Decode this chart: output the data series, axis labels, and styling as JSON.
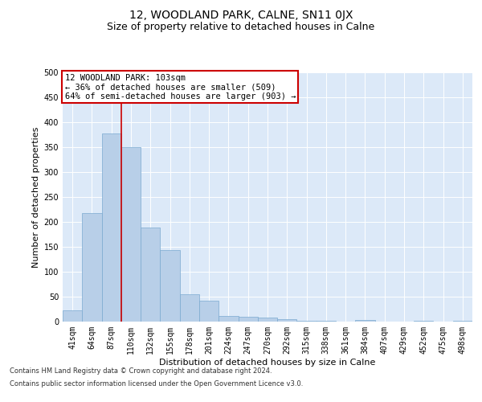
{
  "title": "12, WOODLAND PARK, CALNE, SN11 0JX",
  "subtitle": "Size of property relative to detached houses in Calne",
  "xlabel": "Distribution of detached houses by size in Calne",
  "ylabel": "Number of detached properties",
  "categories": [
    "41sqm",
    "64sqm",
    "87sqm",
    "110sqm",
    "132sqm",
    "155sqm",
    "178sqm",
    "201sqm",
    "224sqm",
    "247sqm",
    "270sqm",
    "292sqm",
    "315sqm",
    "338sqm",
    "361sqm",
    "384sqm",
    "407sqm",
    "429sqm",
    "452sqm",
    "475sqm",
    "498sqm"
  ],
  "values": [
    22,
    218,
    378,
    350,
    188,
    143,
    55,
    42,
    12,
    9,
    8,
    5,
    2,
    1,
    0,
    4,
    0,
    0,
    2,
    0,
    2
  ],
  "bar_color": "#b8cfe8",
  "bar_edge_color": "#7aaad0",
  "marker_color": "#cc0000",
  "annotation_text": "12 WOODLAND PARK: 103sqm\n← 36% of detached houses are smaller (509)\n64% of semi-detached houses are larger (903) →",
  "annotation_box_color": "#ffffff",
  "annotation_box_edge": "#cc0000",
  "ylim": [
    0,
    500
  ],
  "yticks": [
    0,
    50,
    100,
    150,
    200,
    250,
    300,
    350,
    400,
    450,
    500
  ],
  "plot_background": "#dce9f8",
  "footer_line1": "Contains HM Land Registry data © Crown copyright and database right 2024.",
  "footer_line2": "Contains public sector information licensed under the Open Government Licence v3.0.",
  "title_fontsize": 10,
  "subtitle_fontsize": 9,
  "tick_fontsize": 7,
  "ylabel_fontsize": 8,
  "xlabel_fontsize": 8,
  "annotation_fontsize": 7.5,
  "footer_fontsize": 6
}
